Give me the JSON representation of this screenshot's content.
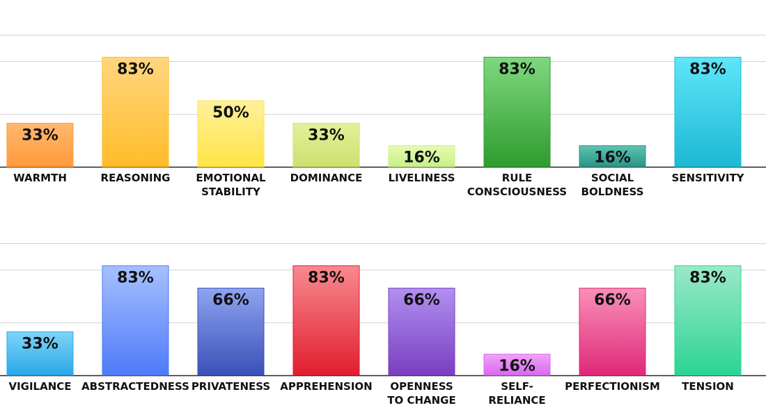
{
  "chart_data": [
    {
      "type": "bar",
      "ylim": [
        0,
        100
      ],
      "gridlines": [
        0,
        40,
        80,
        100
      ],
      "categories": [
        [
          "WARMTH"
        ],
        [
          "REASONING"
        ],
        [
          "EMOTIONAL",
          "STABILITY"
        ],
        [
          "DOMINANCE"
        ],
        [
          "LIVELINESS"
        ],
        [
          "RULE",
          "CONSCIOUSNESS"
        ],
        [
          "SOCIAL",
          "BOLDNESS"
        ],
        [
          "SENSITIVITY"
        ]
      ],
      "values": [
        33,
        83,
        50,
        33,
        16,
        83,
        16,
        83
      ],
      "labels": [
        "33%",
        "83%",
        "50%",
        "33%",
        "16%",
        "83%",
        "16%",
        "83%"
      ],
      "colors": [
        [
          "#ffb870",
          "#ff9a3a"
        ],
        [
          "#ffd680",
          "#ffbc28"
        ],
        [
          "#fff09a",
          "#ffe545"
        ],
        [
          "#e4f09a",
          "#cde06e"
        ],
        [
          "#e6fab0",
          "#c8f08a"
        ],
        [
          "#7fd87f",
          "#2e9c2e"
        ],
        [
          "#5cc4b2",
          "#2a9486"
        ],
        [
          "#5ee6f8",
          "#1db8d4"
        ]
      ]
    },
    {
      "type": "bar",
      "ylim": [
        0,
        100
      ],
      "gridlines": [
        0,
        40,
        80,
        100
      ],
      "categories": [
        [
          "VIGILANCE"
        ],
        [
          "ABSTRACTEDNESS"
        ],
        [
          "PRIVATENESS"
        ],
        [
          "APPREHENSION"
        ],
        [
          "OPENNESS",
          "TO CHANGE"
        ],
        [
          "SELF-",
          "RELIANCE"
        ],
        [
          "PERFECTIONISM"
        ],
        [
          "TENSION"
        ]
      ],
      "values": [
        33,
        83,
        66,
        83,
        66,
        16,
        66,
        83
      ],
      "labels": [
        "33%",
        "83%",
        "66%",
        "83%",
        "66%",
        "16%",
        "66%",
        "83%"
      ],
      "colors": [
        [
          "#7ed4f8",
          "#2aa8e8"
        ],
        [
          "#a6c0ff",
          "#4f7af8"
        ],
        [
          "#8ea4f0",
          "#3a50b8"
        ],
        [
          "#f88a90",
          "#e01e2e"
        ],
        [
          "#b090f0",
          "#7a3ec0"
        ],
        [
          "#f0a4f8",
          "#d868f0"
        ],
        [
          "#f890b8",
          "#e02878"
        ],
        [
          "#9ae8c8",
          "#2cd494"
        ]
      ]
    }
  ]
}
